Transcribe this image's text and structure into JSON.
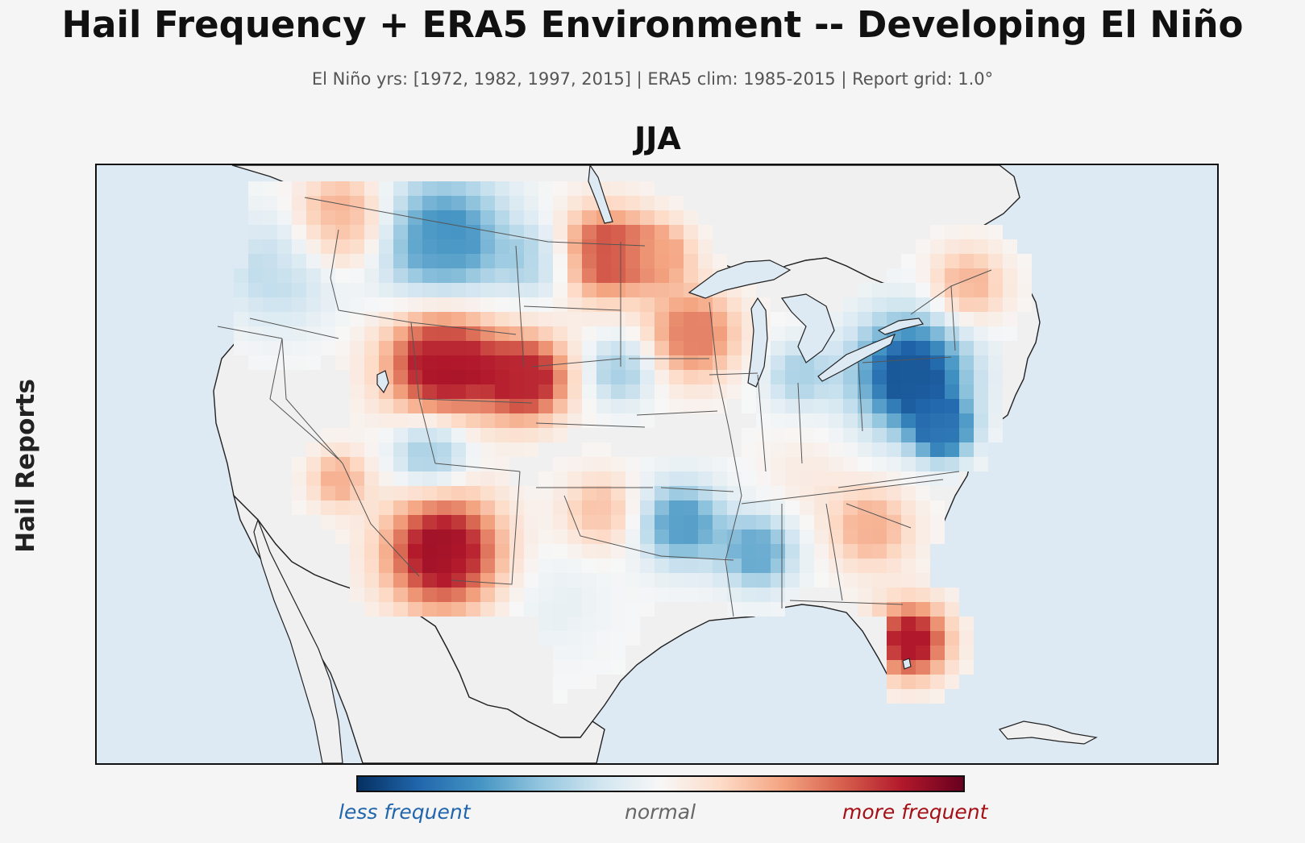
{
  "title": "Hail Frequency + ERA5 Environment -- Developing El Niño",
  "subtitle": "El Niño yrs: [1972, 1982, 1997, 2015]  |  ERA5 clim: 1985-2015  |  Report grid: 1.0°",
  "panel": {
    "season": "JJA",
    "row_label": "Hail Reports"
  },
  "colorbar": {
    "colormap": "RdBu_r",
    "less_label": "less frequent",
    "normal_label": "normal",
    "more_label": "more frequent",
    "less_color": "#2166ac",
    "normal_color": "#666666",
    "more_color": "#a50f15",
    "stops": [
      "#053061",
      "#2166ac",
      "#4393c3",
      "#92c5de",
      "#d1e5f0",
      "#f7f7f7",
      "#fddbc7",
      "#f4a582",
      "#d6604d",
      "#b2182b",
      "#67001f"
    ]
  },
  "map": {
    "projection": "Lambert Conformal (CONUS)",
    "ocean_color": "#dde9f3",
    "land_color": "#f0f0f0",
    "anomaly_regions": [
      {
        "region": "Northern Idaho / NW Montana",
        "anomaly": 0.45
      },
      {
        "region": "Washington / Oregon interior",
        "anomaly": -0.25
      },
      {
        "region": "Central & Eastern Montana",
        "anomaly": -0.6
      },
      {
        "region": "Western North Dakota",
        "anomaly": -0.3
      },
      {
        "region": "Eastern North Dakota / NW Minnesota",
        "anomaly": 0.65
      },
      {
        "region": "Northern Minnesota",
        "anomaly": 0.35
      },
      {
        "region": "Wyoming / Northern Utah",
        "anomaly": 0.85
      },
      {
        "region": "Western Nebraska / NE Colorado",
        "anomaly": 0.75
      },
      {
        "region": "Eastern South Dakota / NW Iowa",
        "anomaly": -0.35
      },
      {
        "region": "Wisconsin / Eastern Iowa",
        "anomaly": 0.5
      },
      {
        "region": "Central Colorado / Eastern Utah",
        "anomaly": -0.45
      },
      {
        "region": "Southern Nevada / NW Arizona",
        "anomaly": 0.35
      },
      {
        "region": "New Mexico / West Texas",
        "anomaly": 0.85
      },
      {
        "region": "Oklahoma / North Texas",
        "anomaly": 0.3
      },
      {
        "region": "Central & South Texas",
        "anomaly": -0.08
      },
      {
        "region": "Lower Mississippi Valley",
        "anomaly": -0.55
      },
      {
        "region": "Mississippi / Alabama",
        "anomaly": -0.5
      },
      {
        "region": "Michigan / Indiana",
        "anomaly": -0.3
      },
      {
        "region": "Ohio / Pennsylvania / New York",
        "anomaly": -0.85
      },
      {
        "region": "New Jersey / Maryland",
        "anomaly": -0.7
      },
      {
        "region": "New England",
        "anomaly": 0.35
      },
      {
        "region": "Kentucky / Tennessee",
        "anomaly": 0.08
      },
      {
        "region": "Carolinas / Georgia",
        "anomaly": 0.35
      },
      {
        "region": "Florida",
        "anomaly": 0.8
      }
    ]
  }
}
